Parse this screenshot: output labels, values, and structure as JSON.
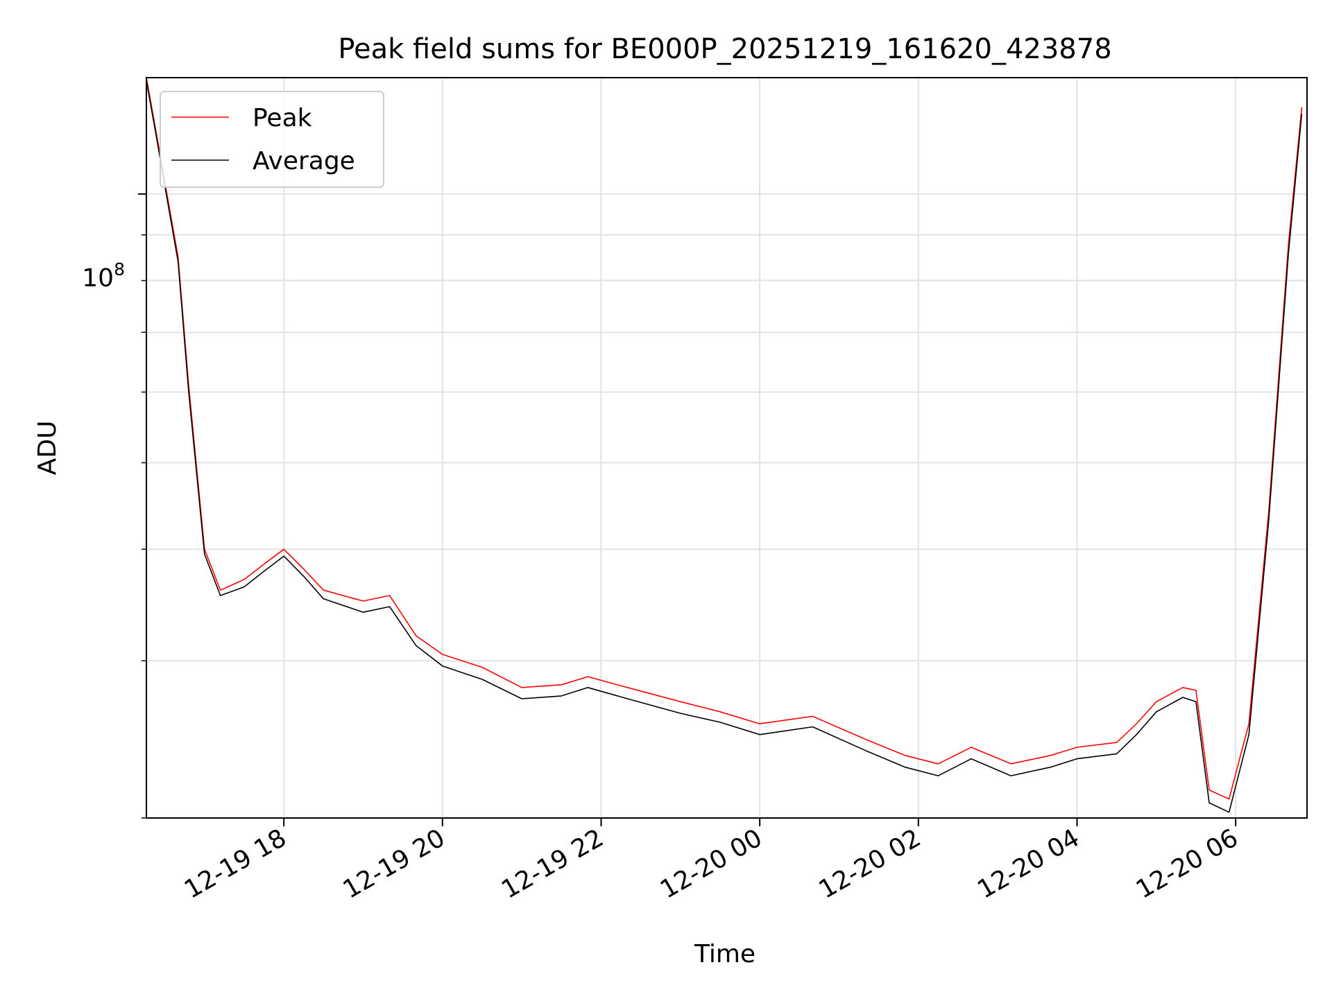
{
  "chart_data": {
    "type": "line",
    "title": "Peak field sums for BE000P_20251219_161620_423878",
    "xlabel": "Time",
    "ylabel": "ADU",
    "yscale": "log",
    "grid": true,
    "legend_position": "upper-left",
    "x_range": [
      "2025-12-19 16:16",
      "2025-12-20 06:54"
    ],
    "y_range": [
      20000000,
      135000000
    ],
    "x_ticks": [
      "12-19 18",
      "12-19 20",
      "12-19 22",
      "12-20 00",
      "12-20 02",
      "12-20 04",
      "12-20 06"
    ],
    "x_tick_times": [
      "2025-12-19 18:00",
      "2025-12-19 20:00",
      "2025-12-19 22:00",
      "2025-12-20 00:00",
      "2025-12-20 02:00",
      "2025-12-20 04:00",
      "2025-12-20 06:00"
    ],
    "y_tick_base": "10",
    "y_tick_exp": "8",
    "y_tick_value": 100000000,
    "series": [
      {
        "name": "Peak",
        "color": "#ff0000",
        "x": [
          "2025-12-19 16:16",
          "2025-12-19 16:24",
          "2025-12-19 16:30",
          "2025-12-19 16:40",
          "2025-12-19 16:48",
          "2025-12-19 17:00",
          "2025-12-19 17:12",
          "2025-12-19 17:30",
          "2025-12-19 17:45",
          "2025-12-19 18:00",
          "2025-12-19 18:15",
          "2025-12-19 18:30",
          "2025-12-19 19:00",
          "2025-12-19 19:20",
          "2025-12-19 19:40",
          "2025-12-19 20:00",
          "2025-12-19 20:30",
          "2025-12-19 21:00",
          "2025-12-19 21:30",
          "2025-12-19 21:50",
          "2025-12-19 22:20",
          "2025-12-19 23:00",
          "2025-12-19 23:30",
          "2025-12-20 00:00",
          "2025-12-20 00:40",
          "2025-12-20 01:20",
          "2025-12-20 01:50",
          "2025-12-20 02:15",
          "2025-12-20 02:40",
          "2025-12-20 03:10",
          "2025-12-20 03:40",
          "2025-12-20 04:00",
          "2025-12-20 04:30",
          "2025-12-20 04:45",
          "2025-12-20 05:00",
          "2025-12-20 05:20",
          "2025-12-20 05:30",
          "2025-12-20 05:40",
          "2025-12-20 05:55",
          "2025-12-20 06:10",
          "2025-12-20 06:25",
          "2025-12-20 06:40",
          "2025-12-20 06:50"
        ],
        "y": [
          135000000,
          116000000,
          103000000,
          85000000,
          61000000,
          40000000,
          36000000,
          37000000,
          38500000,
          40000000,
          38000000,
          36000000,
          35000000,
          35500000,
          32000000,
          30500000,
          29500000,
          28000000,
          28200000,
          28800000,
          28000000,
          27000000,
          26300000,
          25500000,
          26000000,
          24500000,
          23500000,
          23000000,
          24000000,
          23000000,
          23500000,
          24000000,
          24300000,
          25500000,
          27000000,
          28000000,
          27800000,
          21500000,
          21000000,
          25500000,
          44000000,
          88000000,
          125000000
        ]
      },
      {
        "name": "Average",
        "color": "#000000",
        "x": [
          "2025-12-19 16:16",
          "2025-12-19 16:24",
          "2025-12-19 16:30",
          "2025-12-19 16:40",
          "2025-12-19 16:48",
          "2025-12-19 17:00",
          "2025-12-19 17:12",
          "2025-12-19 17:30",
          "2025-12-19 17:45",
          "2025-12-19 18:00",
          "2025-12-19 18:15",
          "2025-12-19 18:30",
          "2025-12-19 19:00",
          "2025-12-19 19:20",
          "2025-12-19 19:40",
          "2025-12-19 20:00",
          "2025-12-19 20:30",
          "2025-12-19 21:00",
          "2025-12-19 21:30",
          "2025-12-19 21:50",
          "2025-12-19 22:20",
          "2025-12-19 23:00",
          "2025-12-19 23:30",
          "2025-12-20 00:00",
          "2025-12-20 00:40",
          "2025-12-20 01:20",
          "2025-12-20 01:50",
          "2025-12-20 02:15",
          "2025-12-20 02:40",
          "2025-12-20 03:10",
          "2025-12-20 03:40",
          "2025-12-20 04:00",
          "2025-12-20 04:30",
          "2025-12-20 04:45",
          "2025-12-20 05:00",
          "2025-12-20 05:20",
          "2025-12-20 05:30",
          "2025-12-20 05:40",
          "2025-12-20 05:55",
          "2025-12-20 06:10",
          "2025-12-20 06:25",
          "2025-12-20 06:40",
          "2025-12-20 06:50"
        ],
        "y": [
          134000000,
          115000000,
          102000000,
          84000000,
          60000000,
          39500000,
          35500000,
          36300000,
          37800000,
          39300000,
          37300000,
          35200000,
          34000000,
          34500000,
          31200000,
          29600000,
          28600000,
          27200000,
          27400000,
          28000000,
          27200000,
          26200000,
          25600000,
          24800000,
          25300000,
          23800000,
          22800000,
          22300000,
          23300000,
          22300000,
          22800000,
          23300000,
          23600000,
          24800000,
          26300000,
          27300000,
          27000000,
          20800000,
          20300000,
          24800000,
          43000000,
          86000000,
          123000000
        ]
      }
    ]
  }
}
